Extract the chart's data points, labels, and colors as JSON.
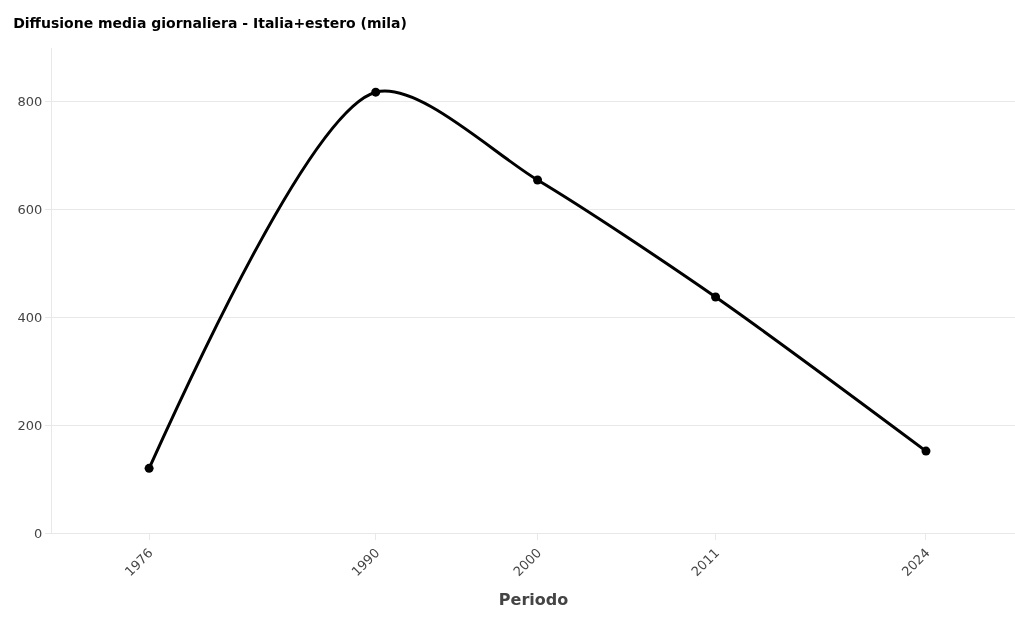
{
  "chart_data": {
    "type": "line",
    "title": "Diffusione media giornaliera - Italia+estero (mila)",
    "xlabel": "Periodo",
    "x": [
      1976,
      1990,
      2000,
      2011,
      2024
    ],
    "series": [
      {
        "color": "#000000",
        "values": [
          120,
          818,
          655,
          438,
          152
        ]
      }
    ],
    "xlim": [
      1970,
      2029.5
    ],
    "xticks": [
      1976,
      1990,
      2000,
      2011,
      2024
    ],
    "ylim": [
      0,
      900
    ],
    "yticks": [
      0,
      200,
      400,
      600,
      800
    ],
    "grid": "y",
    "marker": "circle",
    "line_style": "solid"
  }
}
